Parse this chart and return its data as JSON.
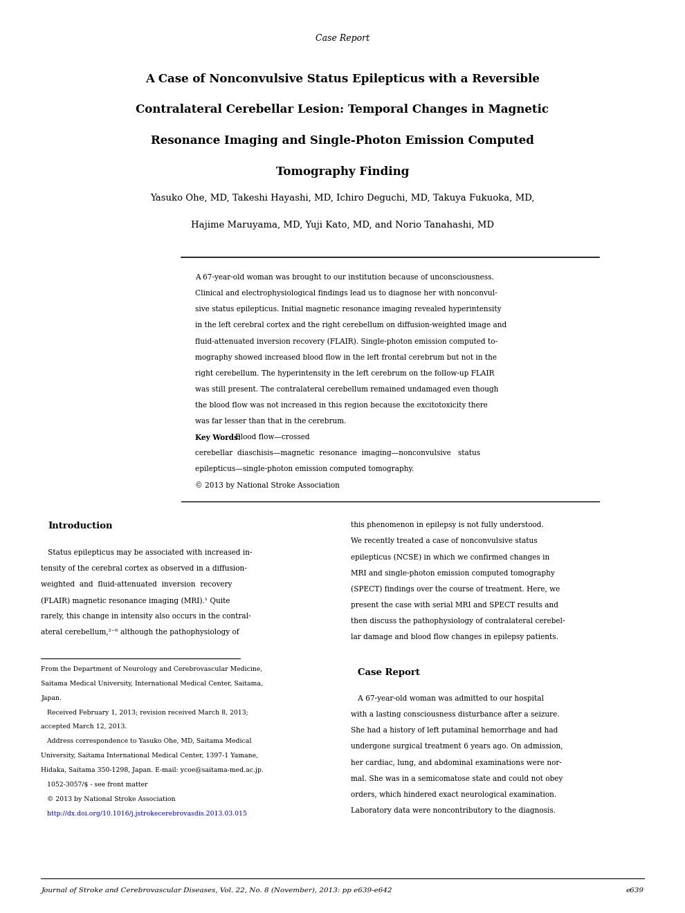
{
  "bg_color": "#ffffff",
  "page_width": 9.9,
  "page_height": 13.2,
  "case_report_label": "Case Report",
  "title_line1": "A Case of Nonconvulsive Status Epilepticus with a Reversible",
  "title_line2": "Contralateral Cerebellar Lesion: Temporal Changes in Magnetic",
  "title_line3": "Resonance Imaging and Single-Photon Emission Computed",
  "title_line4": "Tomography Finding",
  "authors_line1": "Yasuko Ohe, MD, Takeshi Hayashi, MD, Ichiro Deguchi, MD, Takuya Fukuoka, MD,",
  "authors_line2": "Hajime Maruyama, MD, Yuji Kato, MD, and Norio Tanahashi, MD",
  "abstract_lines": [
    "A 67-year-old woman was brought to our institution because of unconsciousness.",
    "Clinical and electrophysiological findings lead us to diagnose her with nonconvul-",
    "sive status epilepticus. Initial magnetic resonance imaging revealed hyperintensity",
    "in the left cerebral cortex and the right cerebellum on diffusion-weighted image and",
    "fluid-attenuated inversion recovery (FLAIR). Single-photon emission computed to-",
    "mography showed increased blood flow in the left frontal cerebrum but not in the",
    "right cerebellum. The hyperintensity in the left cerebrum on the follow-up FLAIR",
    "was still present. The contralateral cerebellum remained undamaged even though",
    "the blood flow was not increased in this region because the excitotoxicity there",
    "was far lesser than that in the cerebrum."
  ],
  "keywords_line1": "cerebellar  diaschisis—magnetic  resonance  imaging—nonconvulsive   status",
  "keywords_line2": "epilepticus—single-photon emission computed tomography.",
  "keywords_prefix": "Key Words:",
  "keywords_line0": "Blood flow—crossed",
  "copyright_text": "© 2013 by National Stroke Association",
  "intro_heading": "Introduction",
  "intro_col1_lines": [
    "   Status epilepticus may be associated with increased in-",
    "tensity of the cerebral cortex as observed in a diffusion-",
    "weighted  and  fluid-attenuated  inversion  recovery",
    "(FLAIR) magnetic resonance imaging (MRI).¹ Quite",
    "rarely, this change in intensity also occurs in the contral-",
    "ateral cerebellum,²⁻⁶ although the pathophysiology of"
  ],
  "intro_col2_lines": [
    "this phenomenon in epilepsy is not fully understood.",
    "We recently treated a case of nonconvulsive status",
    "epilepticus (NCSE) in which we confirmed changes in",
    "MRI and single-photon emission computed tomography",
    "(SPECT) findings over the course of treatment. Here, we",
    "present the case with serial MRI and SPECT results and",
    "then discuss the pathophysiology of contralateral cerebel-",
    "lar damage and blood flow changes in epilepsy patients."
  ],
  "footnote_lines": [
    "From the Department of Neurology and Cerebrovascular Medicine,",
    "Saitama Medical University, International Medical Center, Saitama,",
    "Japan.",
    "   Received February 1, 2013; revision received March 8, 2013;",
    "accepted March 12, 2013.",
    "   Address correspondence to Yasuko Ohe, MD, Saitama Medical",
    "University, Saitama International Medical Center, 1397-1 Yamane,",
    "Hidaka, Saitama 350-1298, Japan. E-mail: ycoe@saitama-med.ac.jp.",
    "   1052-3057/$ - see front matter",
    "   © 2013 by National Stroke Association",
    "   http://dx.doi.org/10.1016/j.jstrokecerebrovasdis.2013.03.015"
  ],
  "footnote_link_index": 10,
  "case_report_heading": "Case Report",
  "case_report_lines": [
    "   A 67-year-old woman was admitted to our hospital",
    "with a lasting consciousness disturbance after a seizure.",
    "She had a history of left putaminal hemorrhage and had",
    "undergone surgical treatment 6 years ago. On admission,",
    "her cardiac, lung, and abdominal examinations were nor-",
    "mal. She was in a semicomatose state and could not obey",
    "orders, which hindered exact neurological examination.",
    "Laboratory data were noncontributory to the diagnosis."
  ],
  "footer_text": "Journal of Stroke and Cerebrovascular Diseases, Vol. 22, No. 8 (November), 2013: pp e639-e642",
  "footer_page": "e639"
}
